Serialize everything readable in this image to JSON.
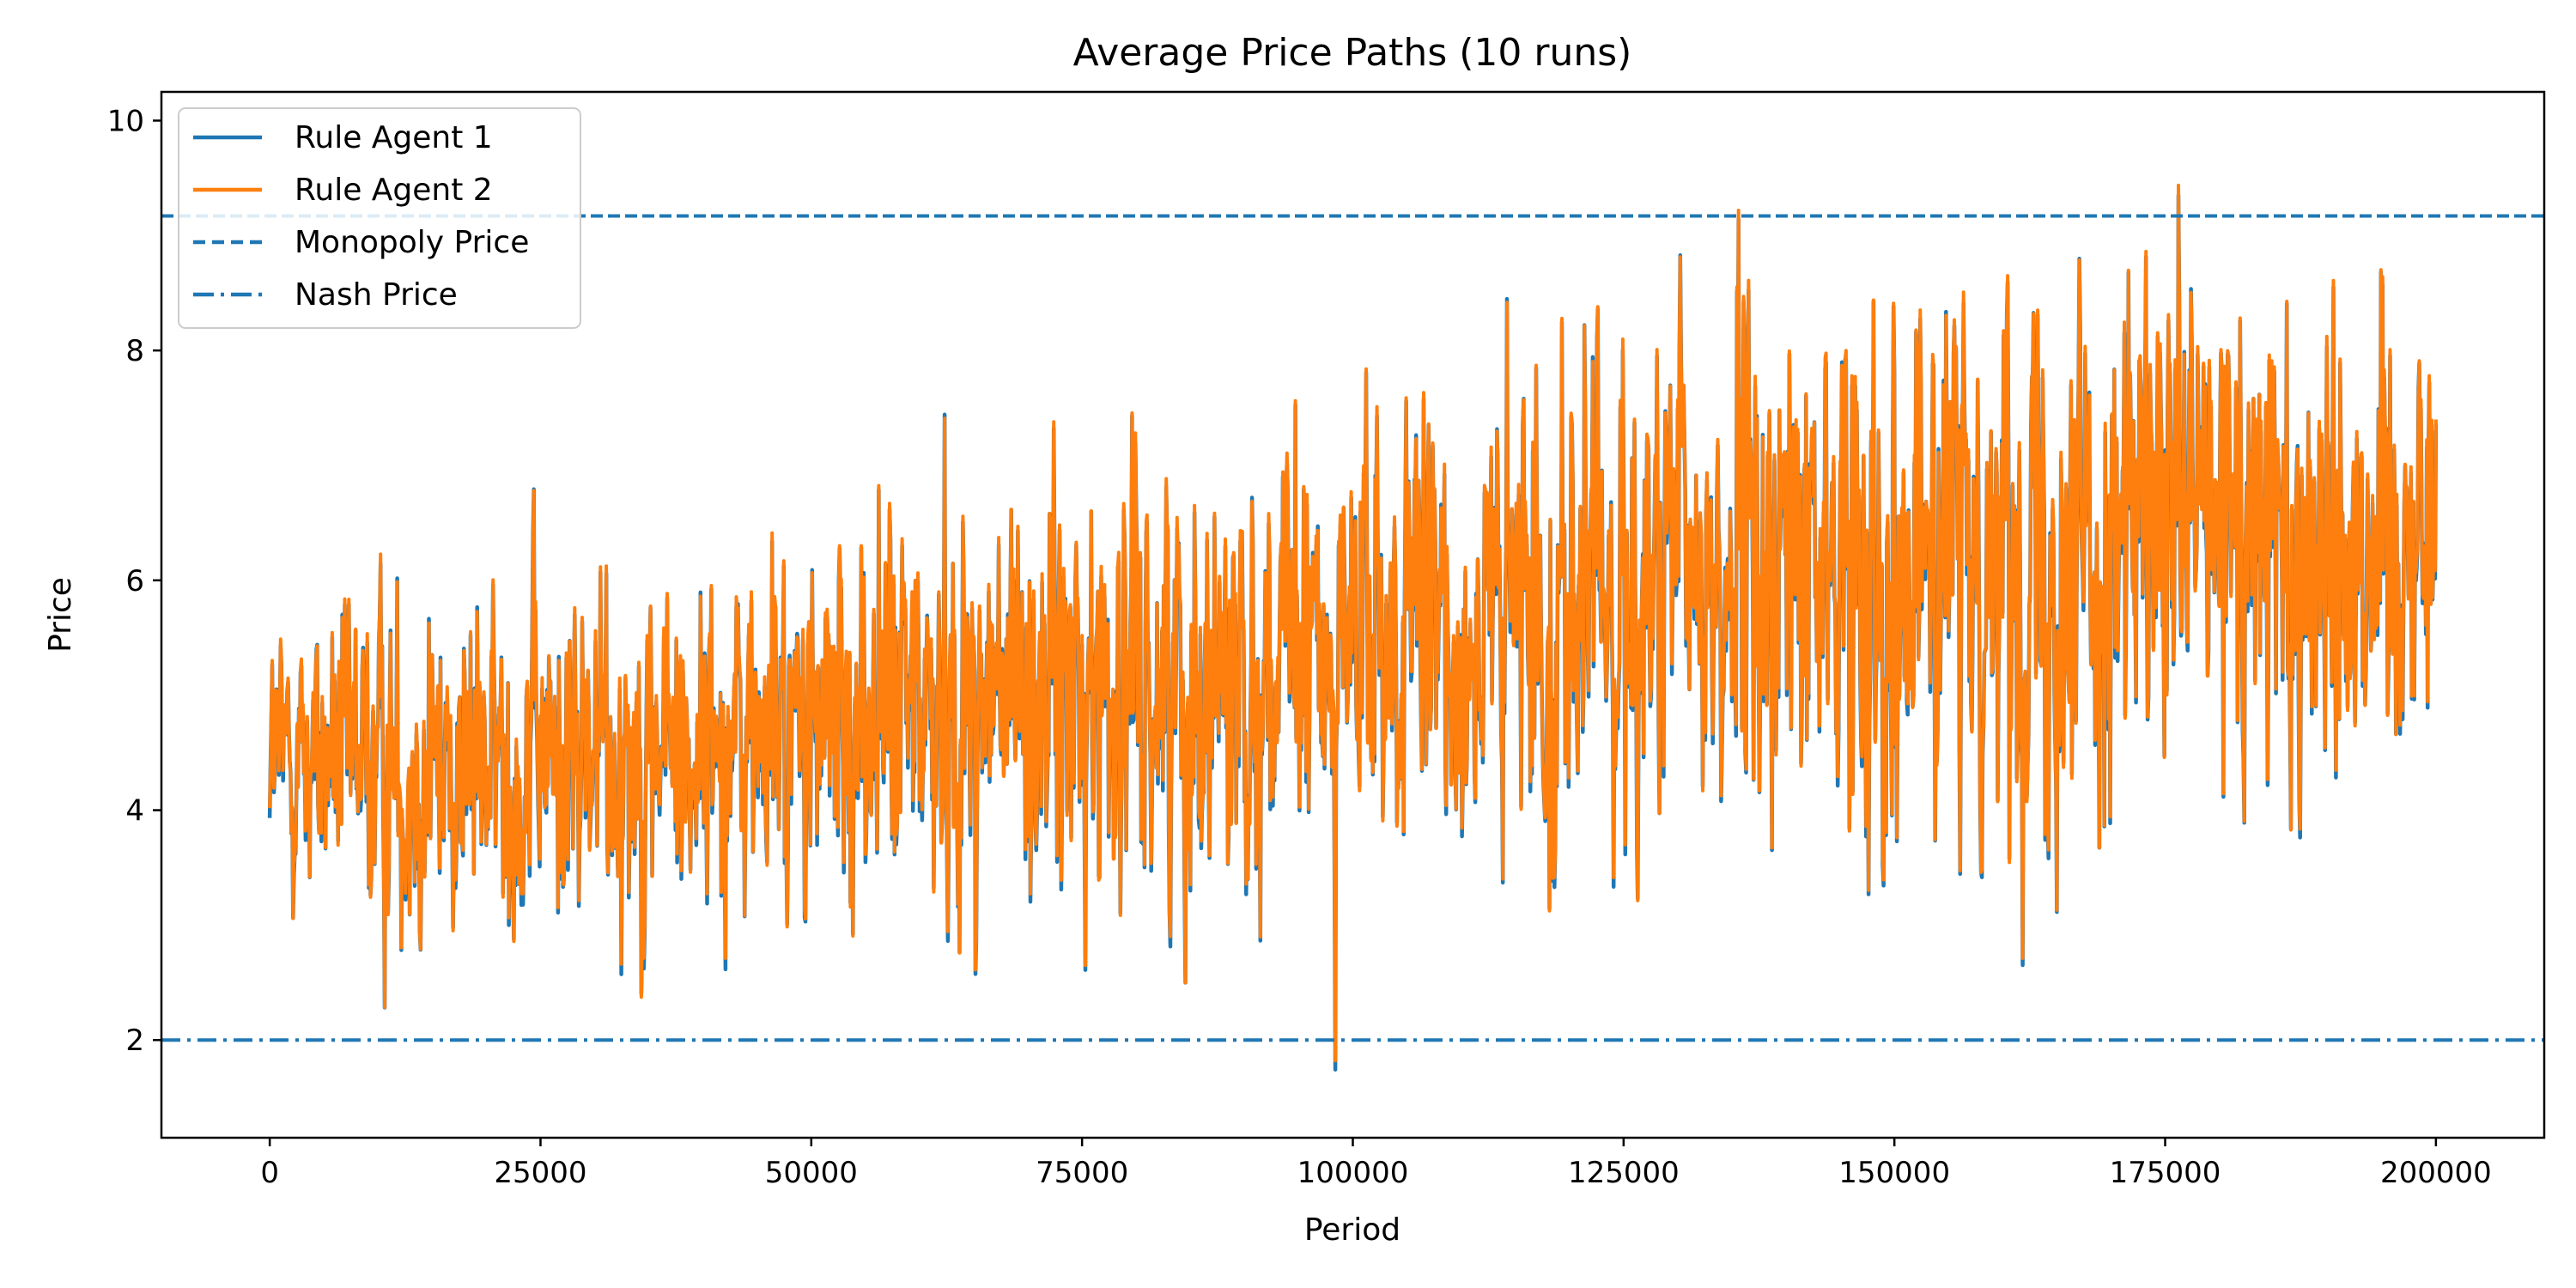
{
  "chart_data": {
    "type": "line",
    "title": "Average Price Paths (10 runs)",
    "xlabel": "Period",
    "ylabel": "Price",
    "xlim": [
      -10000,
      210000
    ],
    "ylim": [
      1.15,
      10.25
    ],
    "xticks": [
      0,
      25000,
      50000,
      75000,
      100000,
      125000,
      150000,
      175000,
      200000
    ],
    "xtick_labels": [
      "0",
      "25000",
      "50000",
      "75000",
      "100000",
      "125000",
      "150000",
      "175000",
      "200000"
    ],
    "yticks": [
      2,
      4,
      6,
      8,
      10
    ],
    "ytick_labels": [
      "2",
      "4",
      "6",
      "8",
      "10"
    ],
    "legend_position": "top-left",
    "series": [
      {
        "name": "Rule Agent 1",
        "color": "#1f77b4",
        "style": "solid",
        "x": [
          0,
          10000,
          20000,
          30000,
          40000,
          50000,
          60000,
          70000,
          80000,
          90000,
          100000,
          110000,
          120000,
          130000,
          140000,
          150000,
          160000,
          170000,
          180000,
          190000,
          200000
        ],
        "values": [
          4.5,
          4.4,
          4.4,
          4.5,
          4.6,
          4.7,
          4.9,
          5.0,
          5.1,
          5.2,
          5.4,
          5.5,
          5.8,
          6.0,
          6.1,
          6.2,
          6.3,
          6.4,
          6.4,
          6.4,
          6.5
        ],
        "spread": [
          0.75,
          1.0,
          1.0,
          1.05,
          1.05,
          1.1,
          1.2,
          1.2,
          1.25,
          1.3,
          1.3,
          1.3,
          1.45,
          1.5,
          1.5,
          1.5,
          1.55,
          1.55,
          1.55,
          1.55,
          1.3
        ]
      },
      {
        "name": "Rule Agent 2",
        "color": "#ff7f0e",
        "style": "solid",
        "x": [
          0,
          10000,
          20000,
          30000,
          40000,
          50000,
          60000,
          70000,
          80000,
          90000,
          100000,
          110000,
          120000,
          130000,
          140000,
          150000,
          160000,
          170000,
          180000,
          190000,
          200000
        ],
        "values": [
          4.5,
          4.4,
          4.4,
          4.5,
          4.6,
          4.7,
          4.9,
          5.0,
          5.1,
          5.2,
          5.4,
          5.5,
          5.8,
          6.0,
          6.1,
          6.2,
          6.3,
          6.4,
          6.4,
          6.4,
          6.5
        ],
        "spread": [
          0.75,
          1.0,
          1.0,
          1.05,
          1.05,
          1.1,
          1.2,
          1.2,
          1.25,
          1.3,
          1.3,
          1.3,
          1.45,
          1.5,
          1.5,
          1.5,
          1.55,
          1.55,
          1.55,
          1.55,
          1.3
        ]
      }
    ],
    "reference_lines": [
      {
        "name": "Monopoly Price",
        "value": 9.17,
        "color": "#1f77b4",
        "style": "dashed"
      },
      {
        "name": "Nash Price",
        "value": 2.0,
        "color": "#1f77b4",
        "style": "dashdot"
      }
    ]
  }
}
